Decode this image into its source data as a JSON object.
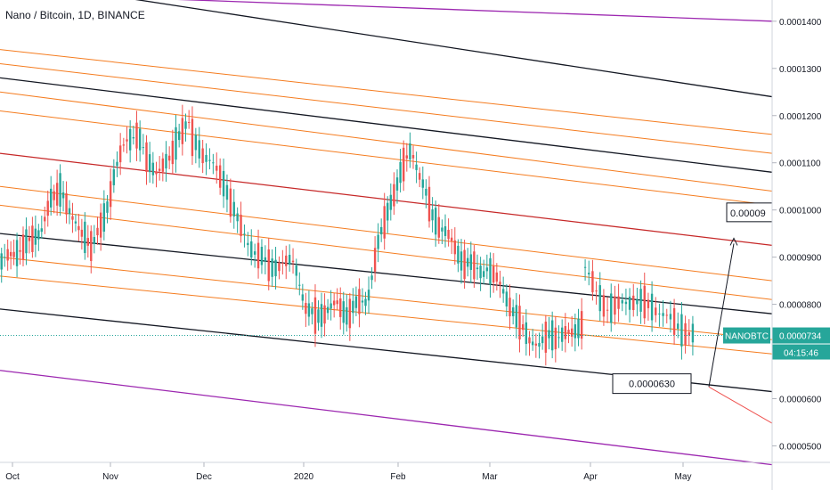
{
  "title": "Nano / Bitcoin, 1D, BINANCE",
  "symbol_tag": "NANOBTC",
  "last_price_label": "0.0000734",
  "countdown_label": "04:15:46",
  "annotations": {
    "target_box": "0.00009",
    "support_box": "0.0000630"
  },
  "colors": {
    "up": "#26a69a",
    "down": "#ef5350",
    "orange": "#f57c1f",
    "black": "#131722",
    "red": "#c62828",
    "purple": "#9c27b0",
    "last_price": "#26a69a"
  },
  "chart_data": {
    "type": "candlestick",
    "title": "Nano / Bitcoin, 1D, BINANCE",
    "x_tick_labels": [
      "Oct",
      "Nov",
      "Dec",
      "2020",
      "Feb",
      "Mar",
      "Apr",
      "May"
    ],
    "y_tick_labels": [
      "0.0001400",
      "0.0001300",
      "0.0001200",
      "0.0001100",
      "0.0001000",
      "0.0000900",
      "0.0000800",
      "0.0000600",
      "0.0000500"
    ],
    "y_ticks": [
      0.00014,
      0.00013,
      0.00012,
      0.00011,
      0.0001,
      9e-05,
      8e-05,
      6e-05,
      5e-05
    ],
    "ylim": [
      4.65e-05,
      0.0001445
    ],
    "last_price": 7.34e-05,
    "series": [
      {
        "month": "Oct",
        "close_path": [
          8.9e-05,
          9.05e-05,
          9.2e-05,
          9.35e-05,
          9.6e-05,
          0.000102,
          0.000105,
          9.8e-05,
          9.6e-05,
          9.2e-05
        ]
      },
      {
        "month": "Nov",
        "close_path": [
          9.3e-05,
          9.9e-05,
          0.000108,
          0.000115,
          0.000116,
          0.000111,
          0.000108,
          0.00011,
          0.000116,
          0.000118
        ]
      },
      {
        "month": "Dec",
        "close_path": [
          0.000115,
          0.000112,
          0.000109,
          0.000105,
          9.8e-05,
          9.3e-05,
          9e-05,
          8.8e-05,
          8.85e-05,
          8.9e-05
        ]
      },
      {
        "month": "2020",
        "close_path": [
          8.7e-05,
          7.9e-05,
          7.7e-05,
          7.9e-05,
          8e-05,
          7.8e-05,
          8e-05,
          8.1e-05,
          9.2e-05,
          0.0001
        ]
      },
      {
        "month": "Feb",
        "close_path": [
          0.000102,
          0.000108,
          0.000113,
          0.000106,
          9.9e-05,
          9.6e-05,
          9.3e-05,
          8.9e-05,
          8.8e-05,
          8.7e-05
        ]
      },
      {
        "month": "Mar",
        "close_path": [
          8.8e-05,
          8.5e-05,
          8.1e-05,
          7.6e-05,
          7.3e-05,
          7.1e-05,
          7.4e-05,
          7.3e-05,
          7.4e-05,
          7.6e-05
        ]
      },
      {
        "month": "Apr",
        "close_path": [
          8.8e-05,
          8.2e-05,
          7.9e-05,
          8e-05,
          8.1e-05,
          8e-05,
          7.9e-05,
          7.7e-05,
          7.5e-05,
          7.34e-05
        ]
      }
    ],
    "lines": [
      {
        "color": "black",
        "from": [
          0.000149,
          0
        ],
        "to": [
          0.000124,
          1
        ]
      },
      {
        "color": "purple",
        "from": [
          0.000146,
          0
        ],
        "to": [
          0.00014,
          1
        ]
      },
      {
        "color": "black",
        "from": [
          0.000128,
          0
        ],
        "to": [
          0.000108,
          1
        ]
      },
      {
        "color": "orange",
        "from": [
          0.000134,
          0
        ],
        "to": [
          0.000116,
          1
        ]
      },
      {
        "color": "orange",
        "from": [
          0.000131,
          0
        ],
        "to": [
          0.000112,
          1
        ]
      },
      {
        "color": "orange",
        "from": [
          0.000125,
          0
        ],
        "to": [
          0.000104,
          1
        ]
      },
      {
        "color": "orange",
        "from": [
          0.000121,
          0
        ],
        "to": [
          0.000101,
          1
        ]
      },
      {
        "color": "red",
        "from": [
          0.000112,
          0
        ],
        "to": [
          9.25e-05,
          1
        ]
      },
      {
        "color": "orange",
        "from": [
          0.000105,
          0
        ],
        "to": [
          8.5e-05,
          1
        ]
      },
      {
        "color": "orange",
        "from": [
          0.000101,
          0
        ],
        "to": [
          8.1e-05,
          1
        ]
      },
      {
        "color": "black",
        "from": [
          9.5e-05,
          0
        ],
        "to": [
          7.8e-05,
          1
        ]
      },
      {
        "color": "orange",
        "from": [
          9e-05,
          0
        ],
        "to": [
          7.25e-05,
          1
        ]
      },
      {
        "color": "orange",
        "from": [
          8.6e-05,
          0
        ],
        "to": [
          6.95e-05,
          1
        ]
      },
      {
        "color": "black",
        "from": [
          7.9e-05,
          0
        ],
        "to": [
          6.15e-05,
          1
        ]
      },
      {
        "color": "purple",
        "from": [
          6.6e-05,
          0
        ],
        "to": [
          4.6e-05,
          1
        ]
      }
    ]
  }
}
